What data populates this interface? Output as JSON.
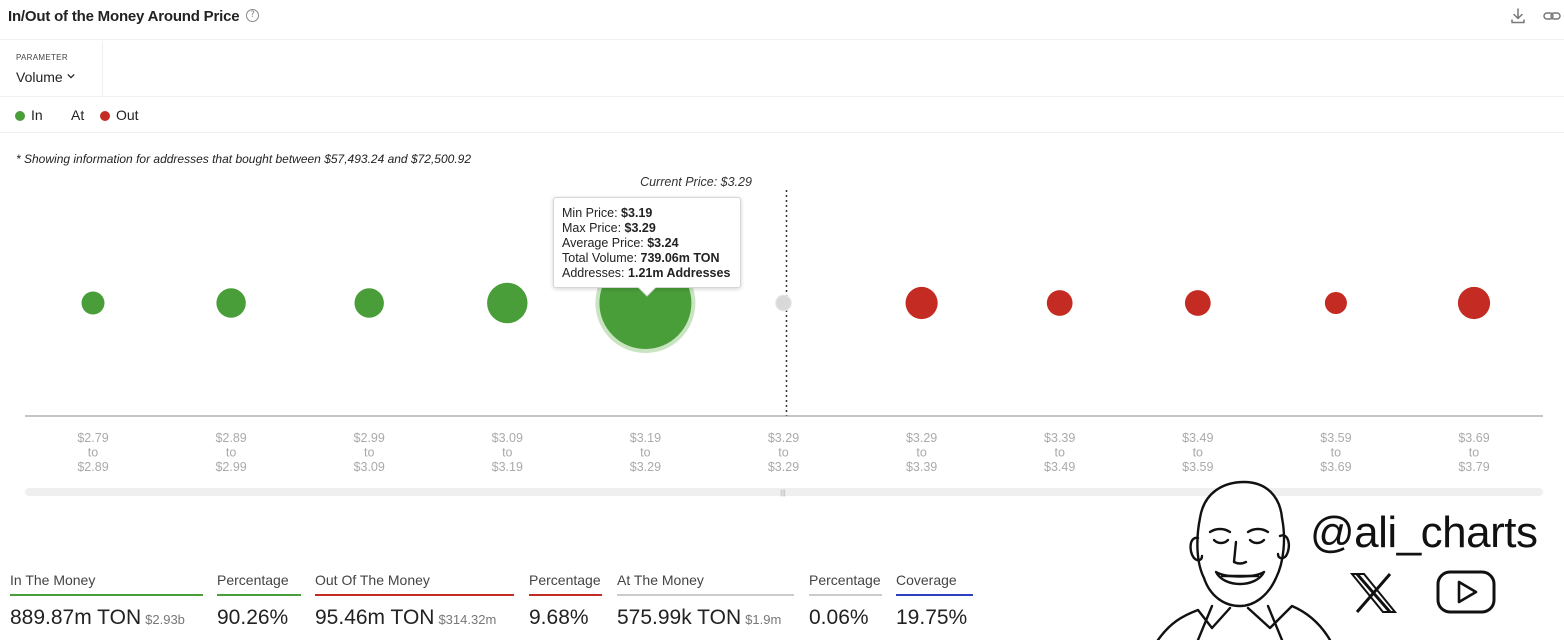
{
  "header": {
    "title": "In/Out of the Money Around Price",
    "help_glyph": "?",
    "icons": [
      "question-circle-icon",
      "download-icon",
      "link-icon"
    ]
  },
  "parameter": {
    "label": "PARAMETER",
    "value": "Volume"
  },
  "legend": [
    {
      "label": "In",
      "color": "#4a9e3a"
    },
    {
      "label": "At",
      "color": "#9e9e9e"
    },
    {
      "label": "Out",
      "color": "#c42b22"
    }
  ],
  "note": "* Showing information for addresses that bought between $57,493.24 and $72,500.92",
  "current_price_label": "Current Price: $3.29",
  "colors": {
    "in": "#4a9e3a",
    "at": "#d9d9d9",
    "out": "#c42b22"
  },
  "chart_data": {
    "type": "scatter",
    "note": "bubble chart; bubble size represents volume",
    "categories": [
      {
        "from": "$2.79",
        "to": "$2.89",
        "status": "in",
        "size": 0.25
      },
      {
        "from": "$2.89",
        "to": "$2.99",
        "status": "in",
        "size": 0.32
      },
      {
        "from": "$2.99",
        "to": "$3.09",
        "status": "in",
        "size": 0.32
      },
      {
        "from": "$3.09",
        "to": "$3.19",
        "status": "in",
        "size": 0.44
      },
      {
        "from": "$3.19",
        "to": "$3.29",
        "status": "in",
        "size": 1.0
      },
      {
        "from": "$3.29",
        "to": "$3.29",
        "status": "at",
        "size": 0.17
      },
      {
        "from": "$3.29",
        "to": "$3.39",
        "status": "out",
        "size": 0.35
      },
      {
        "from": "$3.39",
        "to": "$3.49",
        "status": "out",
        "size": 0.28
      },
      {
        "from": "$3.49",
        "to": "$3.59",
        "status": "out",
        "size": 0.28
      },
      {
        "from": "$3.59",
        "to": "$3.69",
        "status": "out",
        "size": 0.24
      },
      {
        "from": "$3.69",
        "to": "$3.79",
        "status": "out",
        "size": 0.35
      }
    ],
    "to_word": "to",
    "current_price_index": 5,
    "highlighted_index": 4
  },
  "tooltip": {
    "rows": [
      {
        "key": "Min Price: ",
        "value": "$3.19"
      },
      {
        "key": "Max Price: ",
        "value": "$3.29"
      },
      {
        "key": "Average Price: ",
        "value": "$3.24"
      },
      {
        "key": "Total Volume: ",
        "value": "739.06m TON"
      },
      {
        "key": "Addresses: ",
        "value": "1.21m Addresses"
      }
    ]
  },
  "stats": [
    {
      "label": "In The Money",
      "value": "889.87m TON",
      "sub": "$2.93b",
      "color": "#4a9e3a"
    },
    {
      "label": "Percentage",
      "value": "90.26%",
      "sub": "",
      "color": "#4a9e3a"
    },
    {
      "label": "Out Of The Money",
      "value": "95.46m TON",
      "sub": "$314.32m",
      "color": "#c42b22"
    },
    {
      "label": "Percentage",
      "value": "9.68%",
      "sub": "",
      "color": "#c42b22"
    },
    {
      "label": "At The Money",
      "value": "575.99k TON",
      "sub": "$1.9m",
      "color": "#cccccc"
    },
    {
      "label": "Percentage",
      "value": "0.06%",
      "sub": "",
      "color": "#cccccc"
    },
    {
      "label": "Coverage",
      "value": "19.75%",
      "sub": "",
      "color": "#2b3fbf"
    }
  ],
  "watermark": {
    "handle": "@ali_charts",
    "icons": [
      "cartoon-face-icon",
      "x-logo-icon",
      "youtube-icon"
    ]
  }
}
